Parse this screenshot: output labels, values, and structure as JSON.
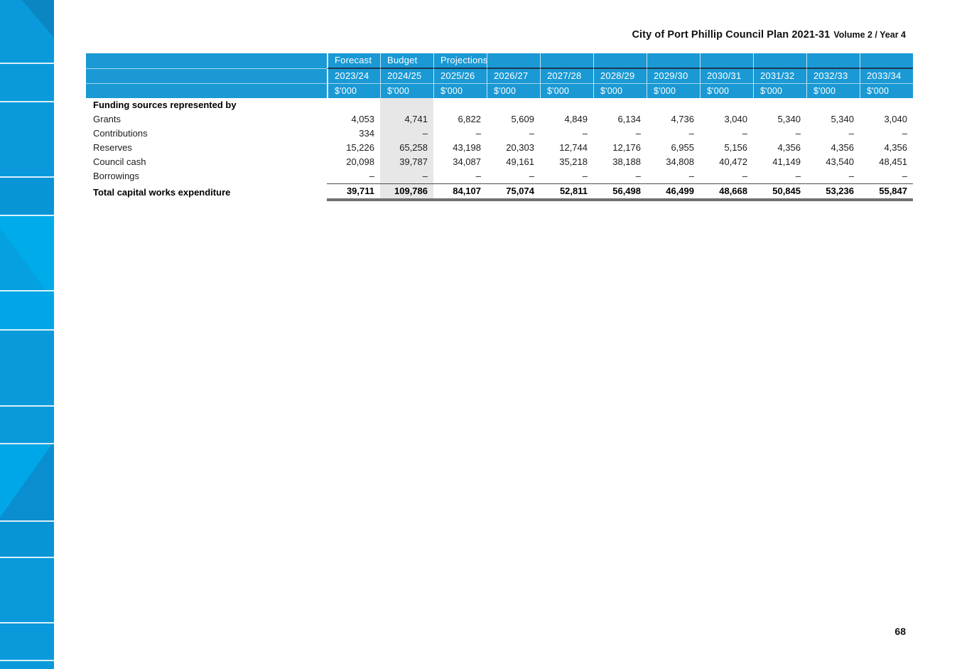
{
  "header": {
    "title": "City of Port Phillip Council Plan 2021-31",
    "subtitle": "Volume 2 / Year 4"
  },
  "footer": {
    "page_number": "68"
  },
  "table": {
    "section_label": "Funding sources represented by",
    "unit_label": "$'000",
    "highlight_column_year": "2024/25",
    "columns": [
      {
        "group": "Forecast",
        "year": "2023/24",
        "unit": "$'000"
      },
      {
        "group": "Budget",
        "year": "2024/25",
        "unit": "$'000"
      },
      {
        "group": "Projections",
        "year": "2025/26",
        "unit": "$'000"
      },
      {
        "group": "",
        "year": "2026/27",
        "unit": "$'000"
      },
      {
        "group": "",
        "year": "2027/28",
        "unit": "$'000"
      },
      {
        "group": "",
        "year": "2028/29",
        "unit": "$'000"
      },
      {
        "group": "",
        "year": "2029/30",
        "unit": "$'000"
      },
      {
        "group": "",
        "year": "2030/31",
        "unit": "$'000"
      },
      {
        "group": "",
        "year": "2031/32",
        "unit": "$'000"
      },
      {
        "group": "",
        "year": "2032/33",
        "unit": "$'000"
      },
      {
        "group": "",
        "year": "2033/34",
        "unit": "$'000"
      }
    ],
    "rows": [
      {
        "label": "Grants",
        "values": [
          "4,053",
          "4,741",
          "6,822",
          "5,609",
          "4,849",
          "6,134",
          "4,736",
          "3,040",
          "5,340",
          "5,340",
          "3,040"
        ]
      },
      {
        "label": "Contributions",
        "values": [
          "334",
          "–",
          "–",
          "–",
          "–",
          "–",
          "–",
          "–",
          "–",
          "–",
          "–"
        ]
      },
      {
        "label": "Reserves",
        "values": [
          "15,226",
          "65,258",
          "43,198",
          "20,303",
          "12,744",
          "12,176",
          "6,955",
          "5,156",
          "4,356",
          "4,356",
          "4,356"
        ]
      },
      {
        "label": "Council cash",
        "values": [
          "20,098",
          "39,787",
          "34,087",
          "49,161",
          "35,218",
          "38,188",
          "34,808",
          "40,472",
          "41,149",
          "43,540",
          "48,451"
        ]
      },
      {
        "label": "Borrowings",
        "values": [
          "–",
          "–",
          "–",
          "–",
          "–",
          "–",
          "–",
          "–",
          "–",
          "–",
          "–"
        ]
      }
    ],
    "total": {
      "label": "Total capital works expenditure",
      "values": [
        "39,711",
        "109,786",
        "84,107",
        "75,074",
        "52,811",
        "56,498",
        "46,499",
        "48,668",
        "50,845",
        "53,236",
        "55,847"
      ]
    }
  },
  "colors": {
    "table_header_blue": "#1a99d4",
    "sidebar_blue": "#0a9adc",
    "highlight_gray": "#e7e7e7",
    "total_rule_gray": "#707070"
  }
}
